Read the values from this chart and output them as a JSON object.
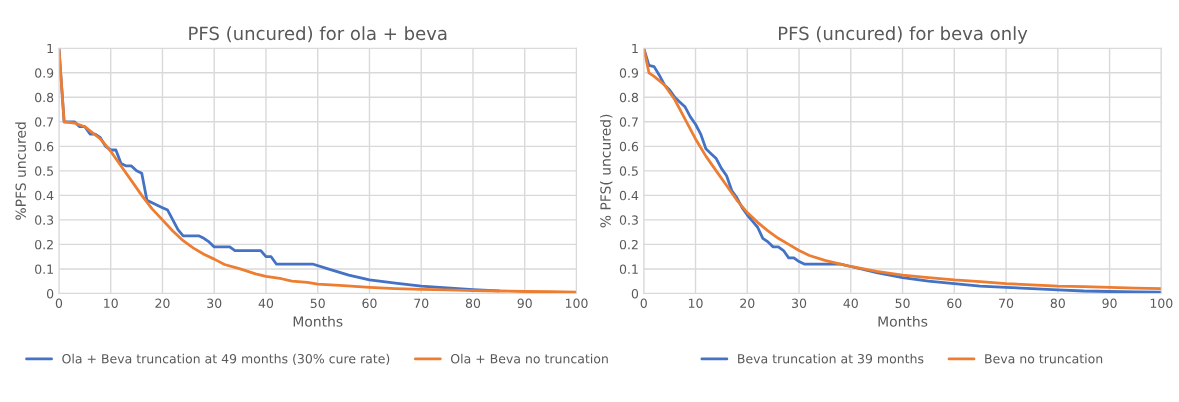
{
  "chart_data": [
    {
      "type": "line",
      "title": "PFS (uncured) for ola + beva",
      "xlabel": "Months",
      "ylabel": "%PFS uncured",
      "xlim": [
        0,
        100
      ],
      "xticks": [
        0,
        10,
        20,
        30,
        40,
        50,
        60,
        70,
        80,
        90,
        100
      ],
      "ylim": [
        0,
        1
      ],
      "yticks": [
        0,
        0.1,
        0.2,
        0.3,
        0.4,
        0.5,
        0.6,
        0.7,
        0.8,
        0.9,
        1
      ],
      "grid": true,
      "legend": "bottom",
      "marker": "none",
      "line_style": "solid",
      "series": [
        {
          "name": "Ola + Beva truncation at 49 months (30% cure rate)",
          "color": "#4472c4",
          "x": [
            0,
            1,
            3,
            4,
            5,
            6,
            7,
            8,
            9,
            10,
            11,
            12,
            13,
            14,
            15,
            16,
            17,
            18,
            20,
            21,
            22,
            23,
            24,
            27,
            28,
            29,
            30,
            33,
            34,
            39,
            40,
            41,
            42,
            49,
            52,
            56,
            60,
            65,
            70,
            75,
            80,
            85
          ],
          "values": [
            1,
            0.7,
            0.7,
            0.68,
            0.68,
            0.65,
            0.65,
            0.635,
            0.6,
            0.585,
            0.585,
            0.53,
            0.52,
            0.52,
            0.5,
            0.49,
            0.38,
            0.37,
            0.35,
            0.34,
            0.3,
            0.26,
            0.235,
            0.235,
            0.225,
            0.21,
            0.19,
            0.19,
            0.175,
            0.175,
            0.15,
            0.15,
            0.12,
            0.12,
            0.1,
            0.075,
            0.055,
            0.042,
            0.03,
            0.023,
            0.016,
            0.011
          ]
        },
        {
          "name": "Ola + Beva no truncation",
          "color": "#ed7d31",
          "x": [
            0,
            1,
            3,
            5,
            8,
            10,
            12,
            14,
            16,
            18,
            20,
            22,
            24,
            26,
            28,
            30,
            32,
            35,
            38,
            40,
            43,
            45,
            48,
            50,
            55,
            60,
            65,
            70,
            75,
            80,
            85,
            90,
            95,
            100
          ],
          "values": [
            1,
            0.7,
            0.695,
            0.68,
            0.63,
            0.58,
            0.52,
            0.46,
            0.4,
            0.345,
            0.3,
            0.255,
            0.215,
            0.185,
            0.16,
            0.14,
            0.118,
            0.1,
            0.08,
            0.07,
            0.06,
            0.05,
            0.045,
            0.038,
            0.032,
            0.025,
            0.02,
            0.017,
            0.015,
            0.012,
            0.01,
            0.008,
            0.007,
            0.005
          ]
        }
      ]
    },
    {
      "type": "line",
      "title": "PFS (uncured) for beva only",
      "xlabel": "Months",
      "ylabel": "% PFS( uncured)",
      "xlim": [
        0,
        100
      ],
      "xticks": [
        0,
        10,
        20,
        30,
        40,
        50,
        60,
        70,
        80,
        90,
        100
      ],
      "ylim": [
        0,
        1
      ],
      "yticks": [
        0,
        0.1,
        0.2,
        0.3,
        0.4,
        0.5,
        0.6,
        0.7,
        0.8,
        0.9,
        1
      ],
      "grid": true,
      "legend": "bottom",
      "marker": "none",
      "line_style": "solid",
      "series": [
        {
          "name": "Beva truncation at 39 months",
          "color": "#4472c4",
          "x": [
            0,
            1,
            2,
            3,
            4,
            5,
            6,
            7,
            8,
            9,
            10,
            11,
            12,
            13,
            14,
            15,
            16,
            17,
            18,
            19,
            20,
            21,
            22,
            23,
            24,
            25,
            26,
            27,
            28,
            29,
            30,
            31,
            38,
            40,
            45,
            50,
            55,
            60,
            65,
            70,
            75,
            80,
            85,
            90,
            95,
            100
          ],
          "values": [
            1,
            0.93,
            0.925,
            0.89,
            0.85,
            0.83,
            0.8,
            0.78,
            0.76,
            0.72,
            0.69,
            0.65,
            0.59,
            0.57,
            0.55,
            0.51,
            0.48,
            0.42,
            0.39,
            0.35,
            0.32,
            0.295,
            0.27,
            0.225,
            0.21,
            0.19,
            0.19,
            0.175,
            0.145,
            0.145,
            0.13,
            0.12,
            0.12,
            0.11,
            0.085,
            0.065,
            0.05,
            0.04,
            0.03,
            0.025,
            0.02,
            0.015,
            0.01,
            0.008,
            0.006,
            0.005
          ]
        },
        {
          "name": "Beva no truncation",
          "color": "#ed7d31",
          "x": [
            0,
            1,
            2,
            4,
            6,
            8,
            10,
            12,
            14,
            16,
            18,
            20,
            22,
            24,
            26,
            28,
            30,
            32,
            35,
            38,
            40,
            45,
            50,
            55,
            60,
            65,
            70,
            75,
            80,
            85,
            90,
            95,
            100
          ],
          "values": [
            1,
            0.9,
            0.885,
            0.85,
            0.79,
            0.71,
            0.63,
            0.56,
            0.5,
            0.44,
            0.38,
            0.33,
            0.29,
            0.255,
            0.225,
            0.2,
            0.175,
            0.155,
            0.135,
            0.12,
            0.11,
            0.09,
            0.075,
            0.065,
            0.055,
            0.048,
            0.04,
            0.035,
            0.03,
            0.028,
            0.025,
            0.022,
            0.02
          ]
        }
      ]
    }
  ]
}
